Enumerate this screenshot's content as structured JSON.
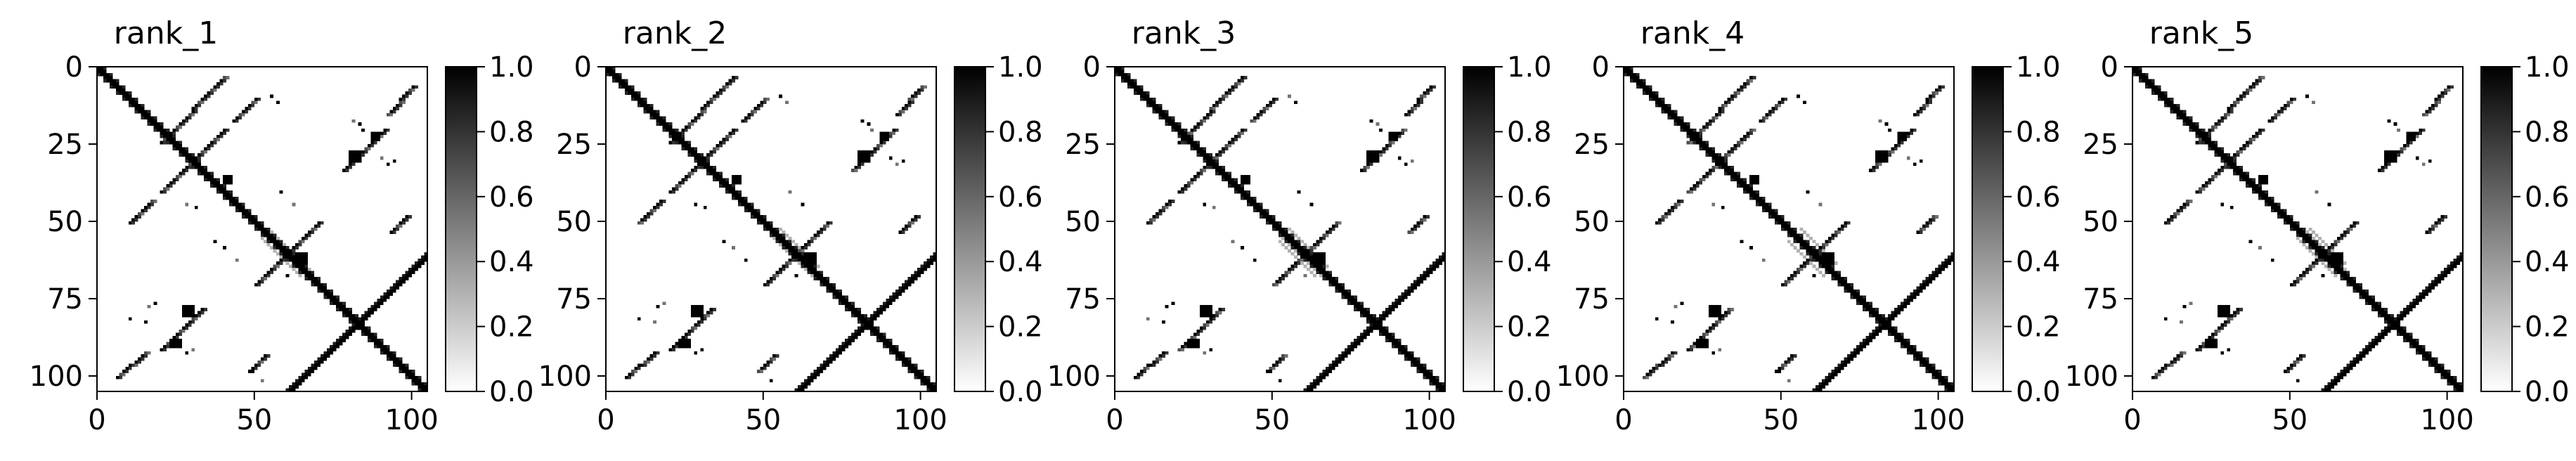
{
  "chart_data": [
    {
      "type": "heatmap",
      "title": "rank_1",
      "xticks": [
        "0",
        "50",
        "100"
      ],
      "yticks": [
        "0",
        "25",
        "50",
        "75",
        "100"
      ],
      "xlim": [
        0,
        105
      ],
      "ylim": [
        105,
        0
      ],
      "colorbar": {
        "ticks": [
          "0.0",
          "0.2",
          "0.4",
          "0.6",
          "0.8",
          "1.0"
        ],
        "range": [
          0,
          1
        ],
        "colormap": "gray_r"
      }
    },
    {
      "type": "heatmap",
      "title": "rank_2",
      "xticks": [
        "0",
        "50",
        "100"
      ],
      "yticks": [
        "0",
        "25",
        "50",
        "75",
        "100"
      ],
      "xlim": [
        0,
        105
      ],
      "ylim": [
        105,
        0
      ],
      "colorbar": {
        "ticks": [
          "0.0",
          "0.2",
          "0.4",
          "0.6",
          "0.8",
          "1.0"
        ],
        "range": [
          0,
          1
        ],
        "colormap": "gray_r"
      }
    },
    {
      "type": "heatmap",
      "title": "rank_3",
      "xticks": [
        "0",
        "50",
        "100"
      ],
      "yticks": [
        "0",
        "25",
        "50",
        "75",
        "100"
      ],
      "xlim": [
        0,
        105
      ],
      "ylim": [
        105,
        0
      ],
      "colorbar": {
        "ticks": [
          "0.0",
          "0.2",
          "0.4",
          "0.6",
          "0.8",
          "1.0"
        ],
        "range": [
          0,
          1
        ],
        "colormap": "gray_r"
      }
    },
    {
      "type": "heatmap",
      "title": "rank_4",
      "xticks": [
        "0",
        "50",
        "100"
      ],
      "yticks": [
        "0",
        "25",
        "50",
        "75",
        "100"
      ],
      "xlim": [
        0,
        105
      ],
      "ylim": [
        105,
        0
      ],
      "colorbar": {
        "ticks": [
          "0.0",
          "0.2",
          "0.4",
          "0.6",
          "0.8",
          "1.0"
        ],
        "range": [
          0,
          1
        ],
        "colormap": "gray_r"
      }
    },
    {
      "type": "heatmap",
      "title": "rank_5",
      "xticks": [
        "0",
        "50",
        "100"
      ],
      "yticks": [
        "0",
        "25",
        "50",
        "75",
        "100"
      ],
      "xlim": [
        0,
        105
      ],
      "ylim": [
        105,
        0
      ],
      "colorbar": {
        "ticks": [
          "0.0",
          "0.2",
          "0.4",
          "0.6",
          "0.8",
          "1.0"
        ],
        "range": [
          0,
          1
        ],
        "colormap": "gray_r"
      }
    }
  ],
  "heatmap_features": {
    "matrix_size": 105,
    "diagonal": {
      "from": 0,
      "to": 105
    },
    "anti_diagonal": {
      "from": [
        105,
        60
      ],
      "to": [
        60,
        105
      ]
    },
    "hairpin_bands": [
      {
        "i": [
          3,
          24
        ],
        "j": [
          40,
          20
        ]
      },
      {
        "i": [
          20,
          40
        ],
        "j": [
          40,
          20
        ]
      },
      {
        "i": [
          50,
          70
        ],
        "j": [
          70,
          50
        ]
      },
      {
        "i": [
          10,
          17
        ],
        "j": [
          50,
          43
        ]
      },
      {
        "i": [
          43,
          50
        ],
        "j": [
          17,
          10
        ]
      },
      {
        "i": [
          78,
          91
        ],
        "j": [
          33,
          20
        ]
      },
      {
        "i": [
          20,
          33
        ],
        "j": [
          91,
          78
        ]
      },
      {
        "i": [
          6,
          15
        ],
        "j": [
          100,
          92
        ]
      },
      {
        "i": [
          92,
          100
        ],
        "j": [
          15,
          6
        ]
      },
      {
        "i": [
          48,
          53
        ],
        "j": [
          98,
          93
        ]
      },
      {
        "i": [
          93,
          98
        ],
        "j": [
          53,
          48
        ]
      }
    ],
    "blocks": [
      {
        "i": [
          77,
          80
        ],
        "j": [
          27,
          30
        ]
      },
      {
        "i": [
          88,
          90
        ],
        "j": [
          23,
          26
        ]
      },
      {
        "i": [
          27,
          30
        ],
        "j": [
          80,
          83
        ]
      },
      {
        "i": [
          21,
          23
        ],
        "j": [
          87,
          89
        ]
      },
      {
        "i": [
          60,
          63
        ],
        "j": [
          63,
          66
        ]
      },
      {
        "i": [
          35,
          37
        ],
        "j": [
          40,
          42
        ]
      }
    ],
    "scatter_dots": [
      [
        17,
        81
      ],
      [
        18,
        83
      ],
      [
        20,
        84
      ],
      [
        29,
        90
      ],
      [
        30,
        94
      ],
      [
        31,
        92
      ],
      [
        44,
        28
      ],
      [
        45,
        31
      ],
      [
        76,
        18
      ],
      [
        77,
        16
      ],
      [
        81,
        10
      ],
      [
        82,
        15
      ],
      [
        91,
        30
      ],
      [
        92,
        28
      ],
      [
        98,
        49
      ],
      [
        101,
        52
      ],
      [
        56,
        37
      ],
      [
        58,
        40
      ],
      [
        62,
        44
      ],
      [
        67,
        60
      ],
      [
        40,
        58
      ],
      [
        44,
        62
      ],
      [
        9,
        55
      ],
      [
        11,
        57
      ]
    ]
  }
}
